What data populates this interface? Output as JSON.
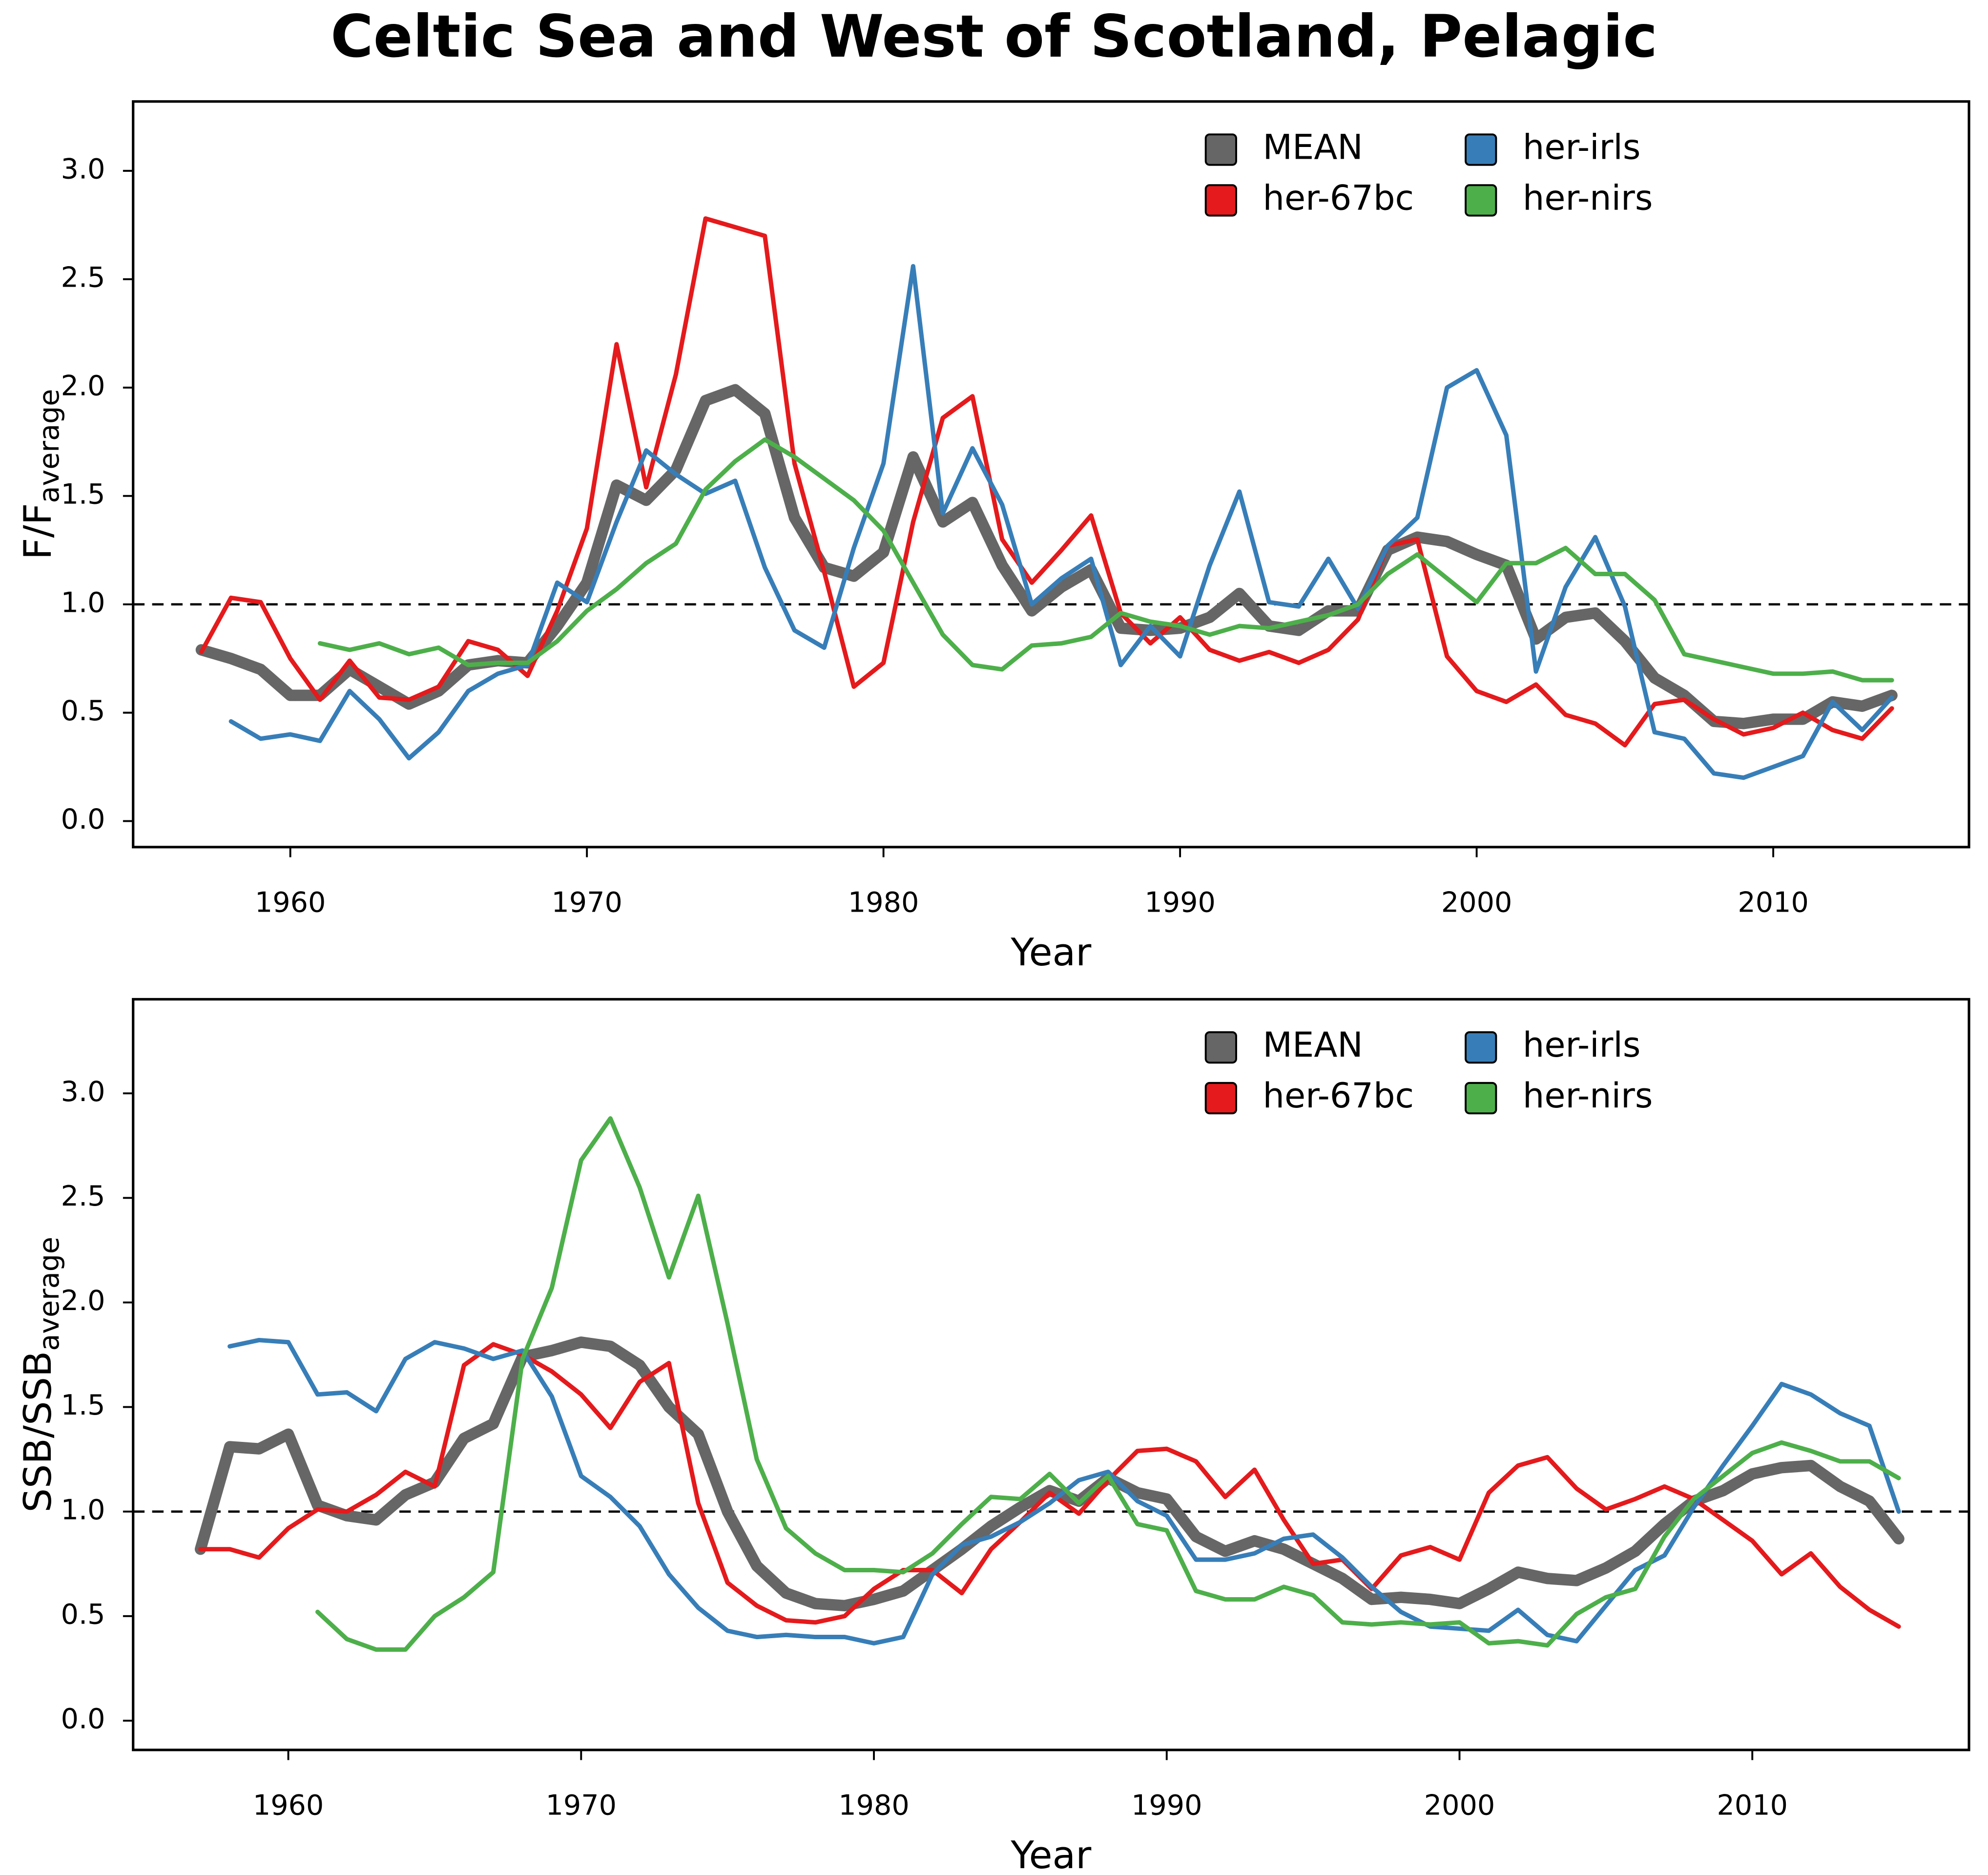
{
  "title": "Celtic Sea and West of Scotland, Pelagic",
  "chart_data": [
    {
      "type": "line",
      "xlabel": "Year",
      "ylabel": "F/F",
      "ylabel_sub": "average",
      "xlim": [
        1954.7,
        2016.6
      ],
      "ylim": [
        -0.12,
        3.32
      ],
      "xticks": [
        1960,
        1970,
        1980,
        1990,
        2000,
        2010
      ],
      "yticks": [
        {
          "value": 0,
          "label": "0.0"
        },
        0.5,
        {
          "value": 1,
          "label": "1.0"
        },
        1.5,
        {
          "value": 2,
          "label": "2.0"
        },
        2.5,
        {
          "value": 3,
          "label": "3.0"
        }
      ],
      "hline": 1,
      "legend": "upper right",
      "x": [
        1957,
        1958,
        1959,
        1960,
        1961,
        1962,
        1963,
        1964,
        1965,
        1966,
        1967,
        1968,
        1969,
        1970,
        1971,
        1972,
        1973,
        1974,
        1975,
        1976,
        1977,
        1978,
        1979,
        1980,
        1981,
        1982,
        1983,
        1984,
        1985,
        1986,
        1987,
        1988,
        1989,
        1990,
        1991,
        1992,
        1993,
        1994,
        1995,
        1996,
        1997,
        1998,
        1999,
        2000,
        2001,
        2002,
        2003,
        2004,
        2005,
        2006,
        2007,
        2008,
        2009,
        2010,
        2011,
        2012,
        2013,
        2014
      ],
      "series": [
        {
          "name": "MEAN",
          "color": "#666666",
          "linewidth": 9,
          "values": [
            0.79,
            0.75,
            0.7,
            0.58,
            0.58,
            0.7,
            0.62,
            0.54,
            0.6,
            0.72,
            0.74,
            0.73,
            0.9,
            1.1,
            1.55,
            1.48,
            1.62,
            1.94,
            1.99,
            1.88,
            1.4,
            1.17,
            1.13,
            1.24,
            1.68,
            1.38,
            1.47,
            1.18,
            0.97,
            1.08,
            1.16,
            0.89,
            0.88,
            0.89,
            0.94,
            1.05,
            0.9,
            0.88,
            0.97,
            0.97,
            1.25,
            1.31,
            1.29,
            1.23,
            1.18,
            0.84,
            0.94,
            0.96,
            0.83,
            0.66,
            0.58,
            0.46,
            0.45,
            0.47,
            0.47,
            0.55,
            0.53,
            0.58
          ]
        },
        {
          "name": "her-67bc",
          "color": "#e41a1c",
          "linewidth": 3.5,
          "values": [
            0.78,
            1.03,
            1.01,
            0.75,
            0.56,
            0.74,
            0.57,
            0.56,
            0.62,
            0.83,
            0.79,
            0.67,
            0.97,
            1.35,
            2.2,
            1.54,
            2.06,
            2.78,
            2.74,
            2.7,
            1.65,
            1.15,
            0.62,
            0.73,
            1.38,
            1.86,
            1.96,
            1.3,
            1.1,
            1.25,
            1.41,
            0.96,
            0.82,
            0.94,
            0.79,
            0.74,
            0.78,
            0.73,
            0.79,
            0.93,
            1.27,
            1.3,
            0.76,
            0.6,
            0.55,
            0.63,
            0.49,
            0.45,
            0.35,
            0.54,
            0.56,
            0.47,
            0.4,
            0.43,
            0.5,
            0.42,
            0.38,
            0.52
          ]
        },
        {
          "name": "her-irls",
          "color": "#377eb8",
          "linewidth": 3.5,
          "values": [
            null,
            0.46,
            0.38,
            0.4,
            0.37,
            0.6,
            0.47,
            0.29,
            0.41,
            0.6,
            0.68,
            0.72,
            1.1,
            1.01,
            1.38,
            1.71,
            1.6,
            1.51,
            1.57,
            1.17,
            0.88,
            0.8,
            1.26,
            1.65,
            2.56,
            1.42,
            1.72,
            1.46,
            1.0,
            1.12,
            1.21,
            0.72,
            0.9,
            0.76,
            1.18,
            1.52,
            1.01,
            0.99,
            1.21,
            0.98,
            1.27,
            1.4,
            2.0,
            2.08,
            1.78,
            0.69,
            1.08,
            1.31,
            0.99,
            0.41,
            0.38,
            0.22,
            0.2,
            0.25,
            0.3,
            0.55,
            0.42,
            0.57
          ]
        },
        {
          "name": "her-nirs",
          "color": "#4daf4a",
          "linewidth": 3.5,
          "values": [
            null,
            null,
            null,
            null,
            0.82,
            0.79,
            0.82,
            0.77,
            0.8,
            0.72,
            0.73,
            0.73,
            0.83,
            0.97,
            1.07,
            1.19,
            1.28,
            1.53,
            1.66,
            1.76,
            1.68,
            1.58,
            1.48,
            1.34,
            1.1,
            0.86,
            0.72,
            0.7,
            0.81,
            0.82,
            0.85,
            0.96,
            0.92,
            0.9,
            0.86,
            0.9,
            0.89,
            0.92,
            0.95,
            1.0,
            1.14,
            1.23,
            1.12,
            1.01,
            1.19,
            1.19,
            1.26,
            1.14,
            1.14,
            1.02,
            0.77,
            0.74,
            0.71,
            0.68,
            0.68,
            0.69,
            0.65,
            0.65
          ]
        }
      ]
    },
    {
      "type": "line",
      "xlabel": "Year",
      "ylabel": "SSB/SSB",
      "ylabel_sub": "average",
      "xlim": [
        1954.7,
        2017.4
      ],
      "ylim": [
        -0.14,
        3.45
      ],
      "xticks": [
        1960,
        1970,
        1980,
        1990,
        2000,
        2010
      ],
      "yticks": [
        {
          "value": 0,
          "label": "0.0"
        },
        0.5,
        {
          "value": 1,
          "label": "1.0"
        },
        1.5,
        {
          "value": 2,
          "label": "2.0"
        },
        2.5,
        {
          "value": 3,
          "label": "3.0"
        }
      ],
      "hline": 1,
      "legend": "upper right",
      "x": [
        1957,
        1958,
        1959,
        1960,
        1961,
        1962,
        1963,
        1964,
        1965,
        1966,
        1967,
        1968,
        1969,
        1970,
        1971,
        1972,
        1973,
        1974,
        1975,
        1976,
        1977,
        1978,
        1979,
        1980,
        1981,
        1982,
        1983,
        1984,
        1985,
        1986,
        1987,
        1988,
        1989,
        1990,
        1991,
        1992,
        1993,
        1994,
        1995,
        1996,
        1997,
        1998,
        1999,
        2000,
        2001,
        2002,
        2003,
        2004,
        2005,
        2006,
        2007,
        2008,
        2009,
        2010,
        2011,
        2012,
        2013,
        2014,
        2015
      ],
      "series": [
        {
          "name": "MEAN",
          "color": "#666666",
          "linewidth": 9,
          "values": [
            0.82,
            1.31,
            1.3,
            1.37,
            1.03,
            0.98,
            0.96,
            1.08,
            1.14,
            1.35,
            1.42,
            1.74,
            1.77,
            1.81,
            1.79,
            1.7,
            1.5,
            1.37,
            1.0,
            0.74,
            0.61,
            0.56,
            0.55,
            0.58,
            0.62,
            0.72,
            0.82,
            0.93,
            1.02,
            1.1,
            1.05,
            1.16,
            1.09,
            1.06,
            0.88,
            0.81,
            0.86,
            0.82,
            0.75,
            0.68,
            0.58,
            0.59,
            0.58,
            0.56,
            0.63,
            0.71,
            0.68,
            0.67,
            0.73,
            0.81,
            0.94,
            1.05,
            1.1,
            1.18,
            1.21,
            1.22,
            1.12,
            1.05,
            0.87
          ]
        },
        {
          "name": "her-67bc",
          "color": "#e41a1c",
          "linewidth": 3.5,
          "values": [
            0.82,
            0.82,
            0.78,
            0.92,
            1.01,
            1.0,
            1.08,
            1.19,
            1.12,
            1.7,
            1.8,
            1.75,
            1.67,
            1.56,
            1.4,
            1.62,
            1.71,
            1.04,
            0.66,
            0.55,
            0.48,
            0.47,
            0.5,
            0.63,
            0.72,
            0.72,
            0.61,
            0.82,
            0.95,
            1.09,
            0.99,
            1.15,
            1.29,
            1.3,
            1.24,
            1.07,
            1.2,
            0.96,
            0.75,
            0.77,
            0.63,
            0.79,
            0.83,
            0.77,
            1.09,
            1.22,
            1.26,
            1.11,
            1.01,
            1.06,
            1.12,
            1.06,
            0.96,
            0.86,
            0.7,
            0.8,
            0.64,
            0.53,
            0.45
          ]
        },
        {
          "name": "her-irls",
          "color": "#377eb8",
          "linewidth": 3.5,
          "values": [
            null,
            1.79,
            1.82,
            1.81,
            1.56,
            1.57,
            1.48,
            1.73,
            1.81,
            1.78,
            1.73,
            1.77,
            1.55,
            1.17,
            1.07,
            0.93,
            0.7,
            0.54,
            0.43,
            0.4,
            0.41,
            0.4,
            0.4,
            0.37,
            0.4,
            0.7,
            0.84,
            0.88,
            0.95,
            1.04,
            1.15,
            1.19,
            1.05,
            0.98,
            0.77,
            0.77,
            0.8,
            0.87,
            0.89,
            0.78,
            0.64,
            0.52,
            0.45,
            0.44,
            0.43,
            0.53,
            0.41,
            0.38,
            0.55,
            0.72,
            0.79,
            1.02,
            1.22,
            1.41,
            1.61,
            1.56,
            1.47,
            1.41,
            1.0
          ]
        },
        {
          "name": "her-nirs",
          "color": "#4daf4a",
          "linewidth": 3.5,
          "values": [
            null,
            null,
            null,
            null,
            0.52,
            0.39,
            0.34,
            0.34,
            0.5,
            0.59,
            0.71,
            1.73,
            2.07,
            2.68,
            2.88,
            2.55,
            2.12,
            2.51,
            1.9,
            1.25,
            0.92,
            0.8,
            0.72,
            0.72,
            0.71,
            0.8,
            0.94,
            1.07,
            1.06,
            1.18,
            1.04,
            1.17,
            0.94,
            0.91,
            0.62,
            0.58,
            0.58,
            0.64,
            0.6,
            0.47,
            0.46,
            0.47,
            0.46,
            0.47,
            0.37,
            0.38,
            0.36,
            0.51,
            0.59,
            0.63,
            0.88,
            1.06,
            1.17,
            1.28,
            1.33,
            1.29,
            1.24,
            1.24,
            1.16
          ]
        }
      ]
    }
  ]
}
